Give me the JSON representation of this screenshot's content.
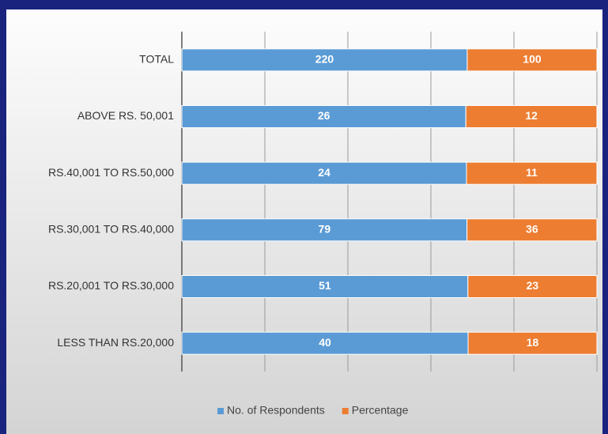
{
  "chart_data": {
    "type": "bar",
    "orientation": "horizontal",
    "stacking": "percent",
    "categories": [
      "TOTAL",
      "ABOVE RS. 50,001",
      "RS.40,001 TO RS.50,000",
      "RS.30,001 TO RS.40,000",
      "RS.20,001 TO RS.30,000",
      "LESS THAN RS.20,000"
    ],
    "series": [
      {
        "name": "No. of Respondents",
        "color": "#5b9bd5",
        "values": [
          220,
          26,
          24,
          79,
          51,
          40
        ]
      },
      {
        "name": "Percentage",
        "color": "#ed7d31",
        "values": [
          100,
          12,
          11,
          36,
          23,
          18
        ]
      }
    ],
    "xlim": [
      0,
      100
    ],
    "xticks": [
      0,
      20,
      40,
      60,
      80,
      100
    ],
    "grid": true,
    "legend": "bottom"
  }
}
